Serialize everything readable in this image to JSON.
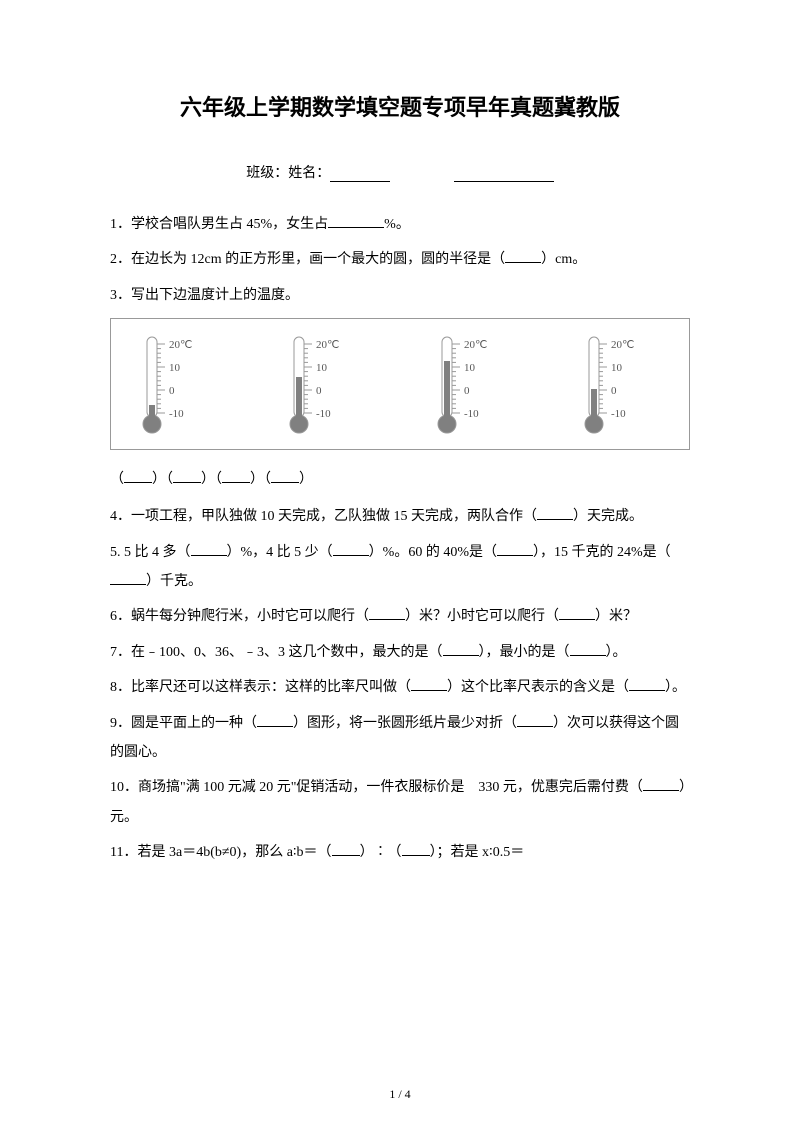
{
  "title": "六年级上学期数学填空题专项早年真题冀教版",
  "classLabel": "班级：姓名：",
  "questions": {
    "q1": "1．学校合唱队男生占 45%，女生占",
    "q1_suffix": "%。",
    "q2_a": "2．在边长为 12cm 的正方形里，画一个最大的圆，圆的半径是（",
    "q2_b": "）cm。",
    "q3": "3．写出下边温度计上的温度。",
    "q4_a": "4．一项工程，甲队独做 10 天完成，乙队独做 15 天完成，两队合作（",
    "q4_b": "）天完成。",
    "q5_a": "5. 5 比 4 多（",
    "q5_b": "）%，4 比 5 少（",
    "q5_c": "）%。60 的 40%是（",
    "q5_d": "），15 千克的 24%是（",
    "q5_e": "）千克。",
    "q6_a": "6．蜗牛每分钟爬行米，小时它可以爬行（",
    "q6_b": "）米？小时它可以爬行（",
    "q6_c": "）米？",
    "q7_a": "7．在﹣100、0、36、﹣3、3 这几个数中，最大的是（",
    "q7_b": "），最小的是（",
    "q7_c": "）。",
    "q8_a": "8．比率尺还可以这样表示：这样的比率尺叫做（",
    "q8_b": "）这个比率尺表示的含义是（",
    "q8_c": "）。",
    "q9_a": "9．圆是平面上的一种（",
    "q9_b": "）图形，将一张圆形纸片最少对折（",
    "q9_c": "）次可以获得这个圆的圆心。",
    "q10_a": "10．商场搞\"满 100 元减 20 元\"促销活动，一件衣服标价是　330 元，优惠完后需付费（",
    "q10_b": "）元。",
    "q11_a": "11．若是 3a＝4b(b≠0)，那么 a∶b＝（",
    "q11_b": "）∶（",
    "q11_c": "）；若是 x∶0.5＝"
  },
  "thermo": {
    "labels": [
      "20℃",
      "10",
      "0",
      "-10"
    ],
    "fills": [
      0.15,
      0.5,
      0.7,
      0.35
    ],
    "tubeColor": "#888888",
    "mercuryColor": "#808080",
    "textColor": "#555555",
    "lineColor": "#999999"
  },
  "pageNum": "1 / 4"
}
